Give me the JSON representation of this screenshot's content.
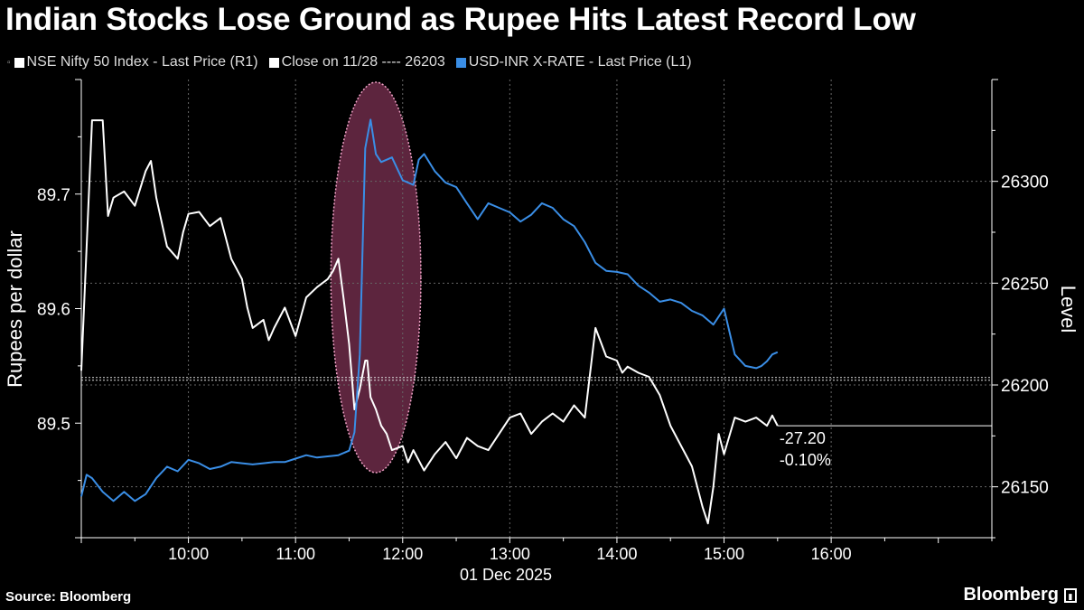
{
  "title": "Indian Stocks Lose Ground as Rupee Hits Latest Record Low",
  "source": "Source: Bloomberg",
  "brand": "Bloomberg",
  "legend": [
    {
      "label": "NSE Nifty 50 Index - Last Price (R1)",
      "color": "#ffffff",
      "marker": "▫"
    },
    {
      "label": "Close on 11/28 ---- 26203",
      "color": "#ffffff"
    },
    {
      "label": "USD-INR X-RATE - Last Price (L1)",
      "color": "#3a8ee6"
    }
  ],
  "chart_data": {
    "type": "line",
    "title": "Indian Stocks Lose Ground as Rupee Hits Latest Record Low",
    "xlabel": "01 Dec 2025",
    "x_tick_labels": [
      "10:00",
      "11:00",
      "12:00",
      "13:00",
      "14:00",
      "15:00",
      "16:00"
    ],
    "x_ticks_hours": [
      10,
      11,
      12,
      13,
      14,
      15,
      16
    ],
    "x_range_hours": [
      9.0,
      17.5
    ],
    "left_axis": {
      "label": "Rupees per dollar",
      "ticks": [
        89.5,
        89.6,
        89.7
      ],
      "ylim": [
        89.4,
        89.8
      ]
    },
    "right_axis": {
      "label": "Level",
      "ticks": [
        26150,
        26200,
        26250,
        26300
      ],
      "ylim": [
        26125,
        26350
      ]
    },
    "reference_line": {
      "label": "Close on 11/28",
      "value": 26203,
      "axis": "right"
    },
    "annotation": {
      "lines": [
        "-27.20",
        "-0.10%"
      ]
    },
    "highlight": {
      "from_hour": 11.33,
      "to_hour": 12.17,
      "description": "highlighted period"
    },
    "series": [
      {
        "name": "NSE Nifty 50 Index - Last Price",
        "axis": "right",
        "color": "#ffffff",
        "x": [
          9.0,
          9.1,
          9.2,
          9.25,
          9.3,
          9.4,
          9.5,
          9.6,
          9.65,
          9.7,
          9.8,
          9.9,
          9.95,
          10.0,
          10.1,
          10.2,
          10.3,
          10.4,
          10.5,
          10.55,
          10.6,
          10.7,
          10.75,
          10.8,
          10.9,
          11.0,
          11.1,
          11.2,
          11.3,
          11.35,
          11.4,
          11.45,
          11.5,
          11.55,
          11.6,
          11.65,
          11.67,
          11.7,
          11.75,
          11.8,
          11.85,
          11.9,
          12.0,
          12.05,
          12.1,
          12.2,
          12.3,
          12.4,
          12.5,
          12.6,
          12.7,
          12.8,
          12.9,
          13.0,
          13.1,
          13.2,
          13.3,
          13.4,
          13.5,
          13.6,
          13.7,
          13.8,
          13.9,
          14.0,
          14.05,
          14.1,
          14.2,
          14.3,
          14.4,
          14.5,
          14.6,
          14.7,
          14.8,
          14.85,
          14.9,
          14.95,
          15.0,
          15.1,
          15.2,
          15.3,
          15.4,
          15.45,
          15.5
        ],
        "values": [
          26207,
          26330,
          26330,
          26283,
          26292,
          26295,
          26288,
          26305,
          26310,
          26292,
          26268,
          26262,
          26275,
          26284,
          26285,
          26278,
          26282,
          26262,
          26252,
          26238,
          26228,
          26232,
          26222,
          26228,
          26238,
          26224,
          26243,
          26248,
          26252,
          26256,
          26262,
          26242,
          26220,
          26188,
          26198,
          26212,
          26212,
          26194,
          26188,
          26180,
          26176,
          26168,
          26170,
          26162,
          26168,
          26158,
          26166,
          26172,
          26164,
          26174,
          26170,
          26168,
          26176,
          26184,
          26186,
          26176,
          26182,
          26186,
          26182,
          26190,
          26184,
          26228,
          26214,
          26212,
          26206,
          26209,
          26206,
          26204,
          26195,
          26180,
          26170,
          26160,
          26140,
          26132,
          26150,
          26176,
          26166,
          26184,
          26182,
          26184,
          26180,
          26185,
          26180
        ]
      },
      {
        "name": "USD-INR X-RATE - Last Price",
        "axis": "left",
        "color": "#3a8ee6",
        "x": [
          9.0,
          9.05,
          9.1,
          9.2,
          9.3,
          9.4,
          9.5,
          9.6,
          9.7,
          9.8,
          9.9,
          10.0,
          10.1,
          10.2,
          10.3,
          10.4,
          10.5,
          10.6,
          10.7,
          10.8,
          10.9,
          11.0,
          11.1,
          11.2,
          11.3,
          11.4,
          11.5,
          11.55,
          11.6,
          11.65,
          11.7,
          11.75,
          11.8,
          11.9,
          12.0,
          12.1,
          12.15,
          12.2,
          12.3,
          12.4,
          12.5,
          12.6,
          12.7,
          12.8,
          12.9,
          13.0,
          13.1,
          13.2,
          13.3,
          13.4,
          13.5,
          13.6,
          13.7,
          13.8,
          13.9,
          14.0,
          14.1,
          14.2,
          14.3,
          14.4,
          14.5,
          14.6,
          14.7,
          14.8,
          14.9,
          15.0,
          15.1,
          15.2,
          15.3,
          15.35,
          15.4,
          15.45,
          15.5
        ],
        "values": [
          89.436,
          89.455,
          89.452,
          89.44,
          89.432,
          89.44,
          89.432,
          89.438,
          89.452,
          89.462,
          89.458,
          89.468,
          89.465,
          89.46,
          89.462,
          89.466,
          89.465,
          89.464,
          89.465,
          89.466,
          89.466,
          89.469,
          89.472,
          89.47,
          89.471,
          89.472,
          89.476,
          89.492,
          89.56,
          89.74,
          89.765,
          89.735,
          89.728,
          89.732,
          89.712,
          89.708,
          89.73,
          89.735,
          89.72,
          89.71,
          89.706,
          89.692,
          89.678,
          89.692,
          89.688,
          89.684,
          89.676,
          89.682,
          89.692,
          89.688,
          89.678,
          89.672,
          89.658,
          89.64,
          89.633,
          89.632,
          89.63,
          89.62,
          89.614,
          89.606,
          89.608,
          89.605,
          89.598,
          89.594,
          89.586,
          89.6,
          89.56,
          89.55,
          89.548,
          89.55,
          89.554,
          89.56,
          89.562
        ]
      }
    ]
  }
}
